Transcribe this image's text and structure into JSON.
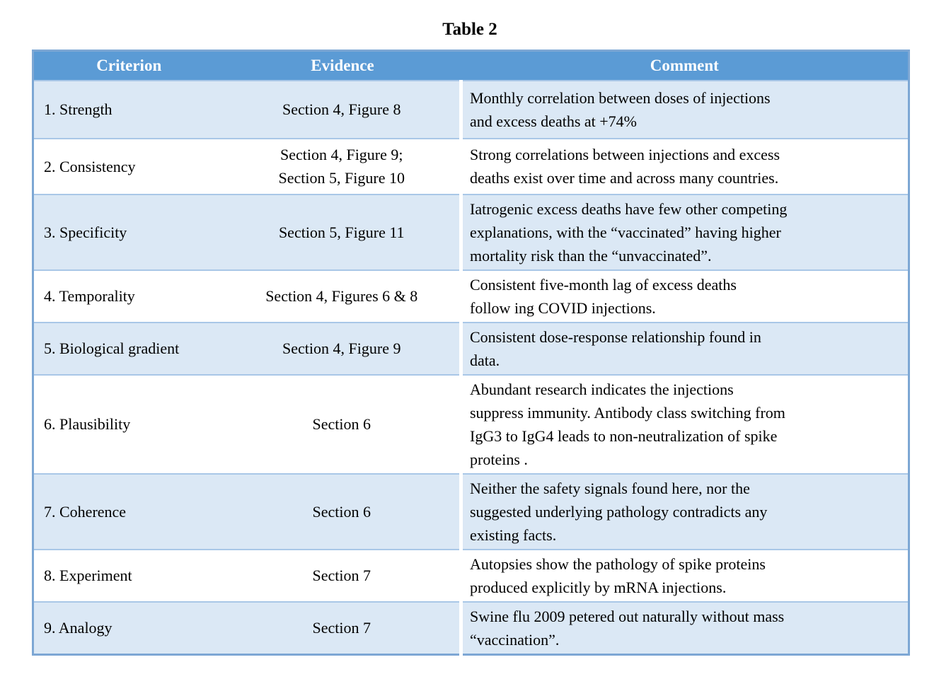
{
  "title": "Table 2",
  "colors": {
    "header_bg": "#5b9bd5",
    "header_text": "#ffffff",
    "row_alt_bg": "#dbe8f5",
    "row_bg": "#ffffff",
    "row_border": "#a9c7e7",
    "outer_border": "#7da7d4",
    "text_color": "#000000"
  },
  "table": {
    "headers": [
      "Criterion",
      "Evidence",
      "Comment"
    ],
    "rows": [
      {
        "criterion": "1. Strength",
        "evidence": "Section 4, Figure 8",
        "comment": "Monthly correlation between doses of injections\nand excess deaths at +74%"
      },
      {
        "criterion": "2. Consistency",
        "evidence": "Section 4, Figure 9;\nSection 5, Figure 10",
        "comment": "Strong correlations between injections and excess\ndeaths exist over time and across many countries."
      },
      {
        "criterion": "3. Specificity",
        "evidence": "Section 5, Figure 11",
        "comment": "Iatrogenic excess deaths have few other competing\nexplanations, with the “vaccinated” having higher\nmortality risk than the “unvaccinated”."
      },
      {
        "criterion": "4. Temporality",
        "evidence": "Section 4, Figures 6 & 8",
        "comment": "Consistent five-month lag of excess deaths\nfollow ing COVID injections."
      },
      {
        "criterion": "5. Biological gradient",
        "evidence": "Section 4, Figure 9",
        "comment": "Consistent dose-response relationship found in\ndata."
      },
      {
        "criterion": "6. Plausibility",
        "evidence": "Section 6",
        "comment": "Abundant research indicates the injections\nsuppress immunity. Antibody class switching from\nIgG3 to IgG4 leads to non-neutralization of spike\nproteins ."
      },
      {
        "criterion": "7. Coherence",
        "evidence": "Section 6",
        "comment": "Neither the safety signals found here, nor the\nsuggested underlying pathology contradicts any\nexisting facts."
      },
      {
        "criterion": "8. Experiment",
        "evidence": "Section 7",
        "comment": "Autopsies show the pathology of spike proteins\nproduced explicitly by mRNA injections."
      },
      {
        "criterion": "9. Analogy",
        "evidence": "Section 7",
        "comment": "Swine flu 2009 petered out naturally without mass\n“vaccination”."
      }
    ]
  }
}
